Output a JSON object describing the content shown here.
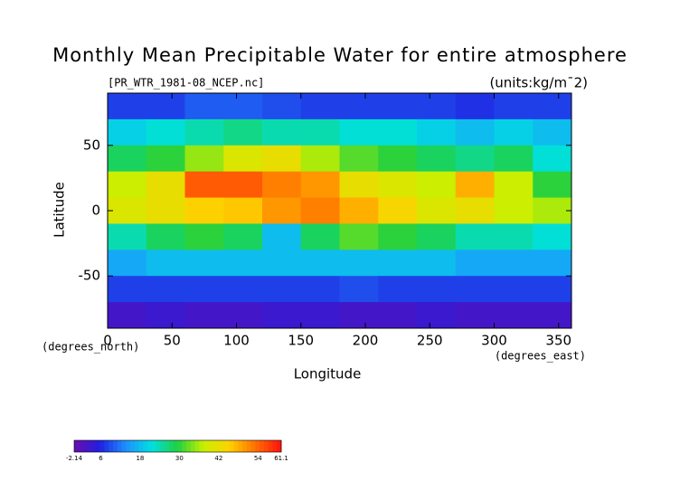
{
  "chart_data": {
    "type": "heatmap",
    "title": "Monthly Mean Precipitable Water for entire atmosphere",
    "subtitle": "[PR_WTR_1981-08_NCEP.nc]",
    "units": "(units:kg/m¯2)",
    "x_label": "Longitude",
    "x_unit": "(degrees_east)",
    "y_label": "Latitude",
    "y_unit": "(degrees_north)",
    "x": [
      15,
      45,
      75,
      105,
      135,
      165,
      195,
      225,
      255,
      285,
      315,
      345
    ],
    "y": [
      80,
      60,
      40,
      20,
      0,
      -20,
      -40,
      -60,
      -80
    ],
    "z": [
      [
        8,
        8,
        10,
        10,
        9,
        8,
        8,
        8,
        8,
        7,
        8,
        8
      ],
      [
        20,
        22,
        24,
        26,
        24,
        24,
        22,
        22,
        20,
        18,
        20,
        18
      ],
      [
        28,
        30,
        35,
        40,
        42,
        36,
        32,
        30,
        28,
        26,
        28,
        22
      ],
      [
        38,
        42,
        55,
        55,
        52,
        50,
        42,
        40,
        38,
        48,
        38,
        30
      ],
      [
        40,
        42,
        45,
        46,
        50,
        52,
        48,
        44,
        40,
        42,
        38,
        36
      ],
      [
        24,
        28,
        30,
        28,
        18,
        28,
        32,
        30,
        28,
        24,
        24,
        22
      ],
      [
        16,
        18,
        18,
        18,
        18,
        18,
        18,
        18,
        18,
        16,
        16,
        16
      ],
      [
        8,
        8,
        8,
        8,
        8,
        8,
        9,
        8,
        8,
        8,
        8,
        8
      ],
      [
        2,
        3,
        2,
        2,
        3,
        3,
        2,
        2,
        3,
        2,
        2,
        2
      ]
    ],
    "xlim": [
      0,
      360
    ],
    "xticks": [
      0,
      50,
      100,
      150,
      200,
      250,
      300,
      350
    ],
    "ylim": [
      -90,
      90
    ],
    "yticks": [
      -50,
      0,
      50
    ],
    "colorbar_lim": [
      -2.14,
      61.1
    ],
    "colorbar_ticks": [
      -2.14,
      6,
      18,
      30,
      42,
      54,
      61.1
    ],
    "colormap": [
      "#6a0dad",
      "#2020e0",
      "#1e90ff",
      "#00e0e0",
      "#20d040",
      "#c8f000",
      "#ffd000",
      "#ff7000",
      "#ff1010"
    ]
  }
}
